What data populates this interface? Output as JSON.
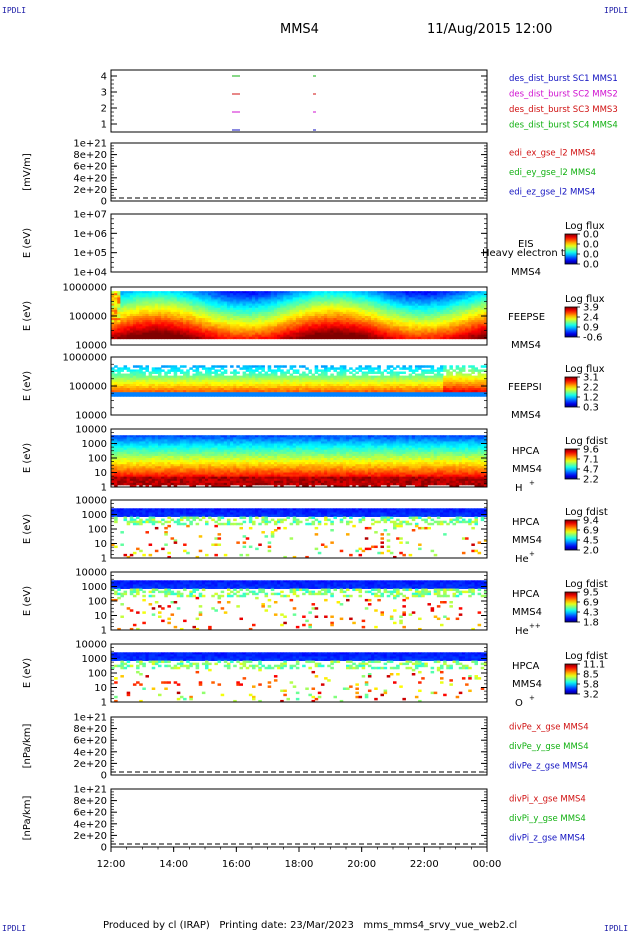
{
  "corner_label": "IPDLI",
  "header": {
    "spacecraft": "MMS4",
    "datetime": "11/Aug/2015 12:00"
  },
  "footer": "Produced by cl (IRAP)   Printing date: 23/Mar/2023   mms_mms4_srvy_vue_web2.cl",
  "colors": {
    "red": "#d01010",
    "green": "#10b010",
    "blue": "#1010c0",
    "magenta": "#d010d0"
  },
  "chart_data": {
    "type": "heatmap",
    "x_ticks": [
      "12:00",
      "14:00",
      "16:00",
      "18:00",
      "20:00",
      "22:00",
      "00:00"
    ],
    "panels": [
      {
        "id": "burst",
        "ylabel": "",
        "yticks": [
          "4",
          "3",
          "2",
          "1"
        ],
        "legend": [
          {
            "text": "des_dist_burst SC1 MMS1",
            "color": "#1010c0"
          },
          {
            "text": "des_dist_burst SC2 MMS2",
            "color": "#d010d0"
          },
          {
            "text": "des_dist_burst SC3 MMS3",
            "color": "#d01010"
          },
          {
            "text": "des_dist_burst SC4 MMS4",
            "color": "#10b010"
          }
        ]
      },
      {
        "id": "edi",
        "ylabel": "[mV/m]",
        "yticks": [
          "1e+21",
          "8e+20",
          "6e+20",
          "4e+20",
          "2e+20",
          "0"
        ],
        "legend": [
          {
            "text": "edi_ex_gse_l2 MMS4",
            "color": "#d01010"
          },
          {
            "text": "edi_ey_gse_l2 MMS4",
            "color": "#10b010"
          },
          {
            "text": "edi_ez_gse_l2 MMS4",
            "color": "#1010c0"
          }
        ]
      },
      {
        "id": "eis",
        "ylabel": "E (eV)",
        "yticks": [
          "1e+07",
          "1e+06",
          "1e+05",
          "1e+04"
        ],
        "labels": [
          "EIS",
          "Heavy electron tof",
          "MMS4"
        ],
        "cbar_title": "Log flux",
        "cbar_ticks": [
          "0.0",
          "0.0",
          "0.0",
          "0.0"
        ]
      },
      {
        "id": "feepse",
        "ylabel": "E (eV)",
        "yticks": [
          "1000000",
          "100000",
          "10000"
        ],
        "labels": [
          "FEEPSE",
          "MMS4"
        ],
        "cbar_title": "Log flux",
        "cbar_ticks": [
          "3.9",
          "2.4",
          "0.9",
          "-0.6"
        ]
      },
      {
        "id": "feepsi",
        "ylabel": "E (eV)",
        "yticks": [
          "1000000",
          "100000",
          "10000"
        ],
        "labels": [
          "FEEPSI",
          "MMS4"
        ],
        "cbar_title": "Log flux",
        "cbar_ticks": [
          "3.1",
          "2.2",
          "1.2",
          "0.3"
        ]
      },
      {
        "id": "hpca_h",
        "ylabel": "E (eV)",
        "yticks": [
          "10000",
          "1000",
          "100",
          "10",
          "1"
        ],
        "labels": [
          "HPCA",
          "MMS4",
          "H",
          "+"
        ],
        "cbar_title": "Log fdist",
        "cbar_ticks": [
          "9.6",
          "7.1",
          "4.7",
          "2.2"
        ]
      },
      {
        "id": "hpca_he",
        "ylabel": "E (eV)",
        "yticks": [
          "10000",
          "1000",
          "100",
          "10",
          "1"
        ],
        "labels": [
          "HPCA",
          "MMS4",
          "He",
          "+"
        ],
        "cbar_title": "Log fdist",
        "cbar_ticks": [
          "9.4",
          "6.9",
          "4.5",
          "2.0"
        ]
      },
      {
        "id": "hpca_hepp",
        "ylabel": "E (eV)",
        "yticks": [
          "10000",
          "1000",
          "100",
          "10",
          "1"
        ],
        "labels": [
          "HPCA",
          "MMS4",
          "He",
          "++"
        ],
        "cbar_title": "Log fdist",
        "cbar_ticks": [
          "9.5",
          "6.9",
          "4.3",
          "1.8"
        ]
      },
      {
        "id": "hpca_o",
        "ylabel": "E (eV)",
        "yticks": [
          "10000",
          "1000",
          "100",
          "10",
          "1"
        ],
        "labels": [
          "HPCA",
          "MMS4",
          "O",
          "+"
        ],
        "cbar_title": "Log fdist",
        "cbar_ticks": [
          "11.1",
          "8.5",
          "5.8",
          "3.2"
        ]
      },
      {
        "id": "divpe",
        "ylabel": "[nPa/km]",
        "yticks": [
          "1e+21",
          "8e+20",
          "6e+20",
          "4e+20",
          "2e+20",
          "0"
        ],
        "legend": [
          {
            "text": "divPe_x_gse MMS4",
            "color": "#d01010"
          },
          {
            "text": "divPe_y_gse MMS4",
            "color": "#10b010"
          },
          {
            "text": "divPe_z_gse MMS4",
            "color": "#1010c0"
          }
        ]
      },
      {
        "id": "divpi",
        "ylabel": "[nPa/km]",
        "yticks": [
          "1e+21",
          "8e+20",
          "6e+20",
          "4e+20",
          "2e+20",
          "0"
        ],
        "legend": [
          {
            "text": "divPi_x_gse MMS4",
            "color": "#d01010"
          },
          {
            "text": "divPi_y_gse MMS4",
            "color": "#10b010"
          },
          {
            "text": "divPi_z_gse MMS4",
            "color": "#1010c0"
          }
        ]
      }
    ]
  }
}
